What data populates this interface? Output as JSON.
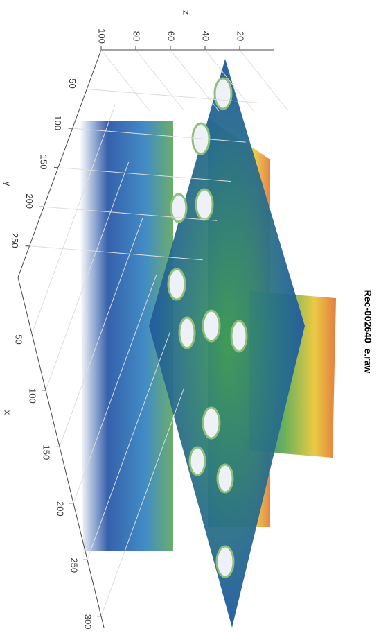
{
  "chart_data": {
    "type": "slice3d",
    "title": "Rec-002640_e.raw",
    "xlabel": "x",
    "ylabel": "y",
    "zlabel": "z",
    "xlim": [
      0,
      310
    ],
    "ylim": [
      0,
      290
    ],
    "zlim": [
      0,
      100
    ],
    "xticks": [
      50,
      100,
      150,
      200,
      250,
      300
    ],
    "yticks": [
      50,
      100,
      150,
      200,
      250
    ],
    "zticks": [
      20,
      40,
      60,
      80,
      100
    ],
    "grid": true
  }
}
